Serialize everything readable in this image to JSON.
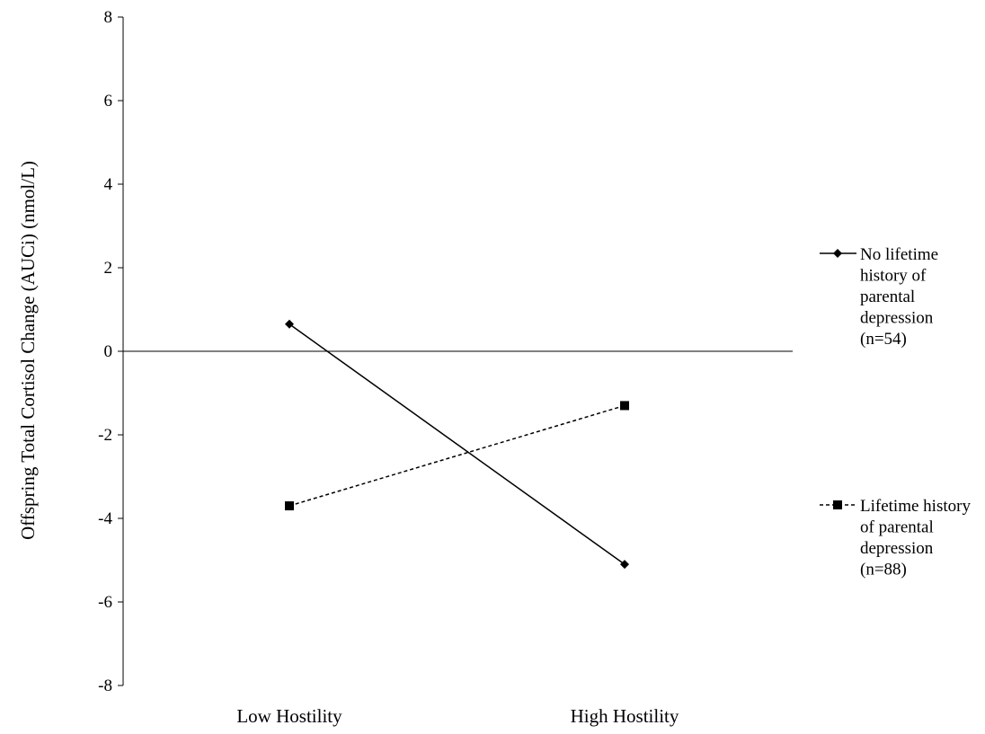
{
  "chart_data": {
    "type": "line",
    "title": "",
    "xlabel": "",
    "ylabel": "Offspring Total Cortisol Change (AUCi) (nmol/L)",
    "categories": [
      "Low Hostility",
      "High Hostility"
    ],
    "ylim": [
      -8,
      8
    ],
    "yticks": [
      8,
      6,
      4,
      2,
      0,
      -2,
      -4,
      -6,
      -8
    ],
    "grid": false,
    "legend_position": "right",
    "series": [
      {
        "name": "No lifetime history of parental depression (n=54)",
        "legend_lines": [
          "No lifetime",
          "history of",
          "parental",
          "depression",
          "(n=54)"
        ],
        "values": [
          0.65,
          -5.1
        ],
        "marker": "diamond",
        "line_style": "solid",
        "color": "#000000"
      },
      {
        "name": "Lifetime history of parental depression (n=88)",
        "legend_lines": [
          "Lifetime history",
          "of parental",
          "depression",
          "(n=88)"
        ],
        "values": [
          -3.7,
          -1.3
        ],
        "marker": "square",
        "line_style": "dashed",
        "color": "#000000"
      }
    ]
  }
}
